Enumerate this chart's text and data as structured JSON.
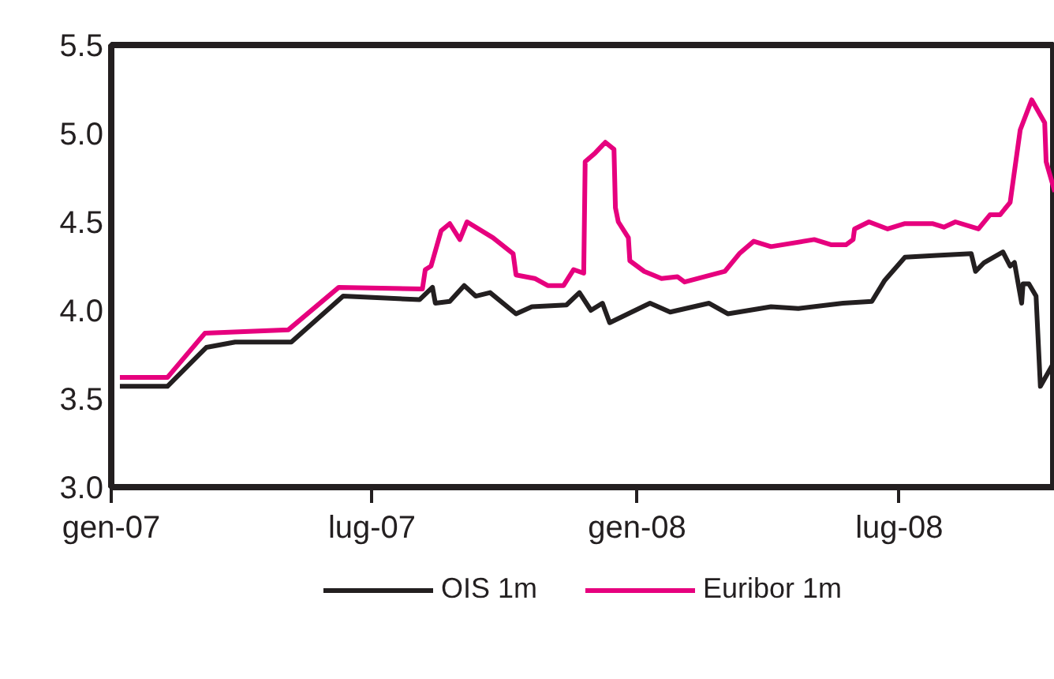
{
  "chart_data": {
    "type": "line",
    "x": [
      "2007-01-07",
      "2007-02-09",
      "2007-03-07",
      "2007-05-04",
      "2007-06-08",
      "2007-08-05",
      "2007-08-07",
      "2007-08-11",
      "2007-08-18",
      "2007-08-24",
      "2007-08-31",
      "2007-09-05",
      "2007-09-23",
      "2007-10-07",
      "2007-10-09",
      "2007-10-22",
      "2007-10-31",
      "2007-11-11",
      "2007-11-18",
      "2007-11-25",
      "2007-11-26",
      "2007-12-03",
      "2007-12-10",
      "2007-12-16",
      "2007-12-17",
      "2007-12-19",
      "2007-12-26",
      "2007-12-27",
      "2008-01-06",
      "2008-01-18",
      "2008-01-29",
      "2008-02-03",
      "2008-03-02",
      "2008-03-12",
      "2008-03-22",
      "2008-04-03",
      "2008-05-03",
      "2008-05-15",
      "2008-05-25",
      "2008-05-30",
      "2008-05-31",
      "2008-06-10",
      "2008-06-23",
      "2008-07-05",
      "2008-07-24",
      "2008-08-01",
      "2008-08-09",
      "2008-08-25",
      "2008-09-02",
      "2008-09-09",
      "2008-09-16",
      "2008-09-23",
      "2008-10-01",
      "2008-10-10",
      "2008-10-11",
      "2008-10-17"
    ],
    "series": [
      {
        "name": "OIS 1m",
        "color": "#231f20",
        "x": [
          "2007-01-07",
          "2007-02-09",
          "2007-03-08",
          "2007-03-28",
          "2007-05-06",
          "2007-06-11",
          "2007-08-03",
          "2007-08-12",
          "2007-08-14",
          "2007-08-24",
          "2007-09-03",
          "2007-09-11",
          "2007-09-21",
          "2007-10-09",
          "2007-10-20",
          "2007-11-13",
          "2007-11-22",
          "2007-11-30",
          "2007-12-08",
          "2007-12-13",
          "2008-01-10",
          "2008-01-24",
          "2008-02-20",
          "2008-03-04",
          "2008-04-03",
          "2008-04-22",
          "2008-05-23",
          "2008-06-12",
          "2008-06-21",
          "2008-07-05",
          "2008-07-27",
          "2008-08-20",
          "2008-08-23",
          "2008-08-29",
          "2008-09-11",
          "2008-09-16",
          "2008-09-19",
          "2008-09-24",
          "2008-09-25",
          "2008-09-29",
          "2008-10-04",
          "2008-10-07",
          "2008-10-16",
          "2008-10-17"
        ],
        "values": [
          3.57,
          3.57,
          3.79,
          3.82,
          3.82,
          4.08,
          4.06,
          4.13,
          4.04,
          4.05,
          4.14,
          4.08,
          4.1,
          3.98,
          4.02,
          4.03,
          4.1,
          4.0,
          4.04,
          3.93,
          4.04,
          3.99,
          4.04,
          3.98,
          4.02,
          4.01,
          4.04,
          4.05,
          4.17,
          4.3,
          4.31,
          4.32,
          4.22,
          4.27,
          4.33,
          4.25,
          4.27,
          4.04,
          4.15,
          4.15,
          4.08,
          3.57,
          3.7,
          3.35
        ]
      },
      {
        "name": "Euribor 1m",
        "color": "#e6007e",
        "values": [
          3.62,
          3.62,
          3.87,
          3.89,
          4.13,
          4.12,
          4.23,
          4.25,
          4.45,
          4.49,
          4.4,
          4.5,
          4.41,
          4.32,
          4.2,
          4.18,
          4.14,
          4.14,
          4.23,
          4.21,
          4.84,
          4.89,
          4.95,
          4.91,
          4.58,
          4.5,
          4.41,
          4.28,
          4.22,
          4.18,
          4.19,
          4.16,
          4.22,
          4.32,
          4.39,
          4.36,
          4.4,
          4.37,
          4.37,
          4.4,
          4.46,
          4.5,
          4.46,
          4.49,
          4.49,
          4.47,
          4.5,
          4.46,
          4.54,
          4.54,
          4.61,
          5.02,
          5.19,
          5.06,
          4.84,
          4.67
        ]
      }
    ],
    "xlim": [
      "2007-01-01",
      "2008-10-17"
    ],
    "xticks": [
      {
        "value": "2007-01-01",
        "label": "gen-07"
      },
      {
        "value": "2007-07-01",
        "label": "lug-07"
      },
      {
        "value": "2008-01-01",
        "label": "gen-08"
      },
      {
        "value": "2008-07-01",
        "label": "lug-08"
      }
    ],
    "ylim": [
      3.0,
      5.5
    ],
    "yticks": [
      {
        "value": 3.0,
        "label": "3.0"
      },
      {
        "value": 3.5,
        "label": "3.5"
      },
      {
        "value": 4.0,
        "label": "4.0"
      },
      {
        "value": 4.5,
        "label": "4.5"
      },
      {
        "value": 5.0,
        "label": "5.0"
      },
      {
        "value": 5.5,
        "label": "5.5"
      }
    ],
    "legend": "bottom",
    "grid": false,
    "marker": "none",
    "line_style": "solid"
  }
}
